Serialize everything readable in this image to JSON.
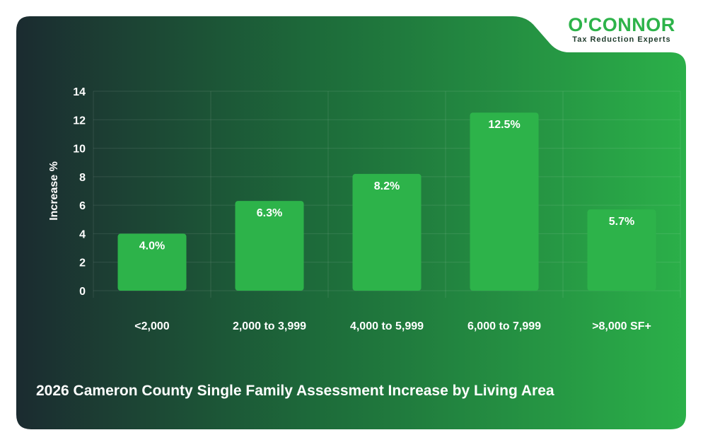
{
  "brand": {
    "name": "O'CONNOR",
    "tagline": "Tax Reduction Experts"
  },
  "colors": {
    "bar": "#2db34a",
    "text": "#ffffff",
    "background_dark": "#1b2b30",
    "background_green": "#2aa747"
  },
  "chart_data": {
    "type": "bar",
    "title": "2026 Cameron County Single Family Assessment Increase by Living Area",
    "xlabel": "",
    "ylabel": "Increase %",
    "categories": [
      "<2,000",
      "2,000 to 3,999",
      "4,000 to 5,999",
      "6,000 to 7,999",
      ">8,000 SF+"
    ],
    "values": [
      4.0,
      6.3,
      8.2,
      12.5,
      5.7
    ],
    "data_labels": [
      "4.0%",
      "6.3%",
      "8.2%",
      "12.5%",
      "5.7%"
    ],
    "ylim": [
      0,
      14
    ],
    "yticks": [
      0,
      2,
      4,
      6,
      8,
      10,
      12,
      14
    ],
    "grid": true,
    "legend": "none"
  }
}
